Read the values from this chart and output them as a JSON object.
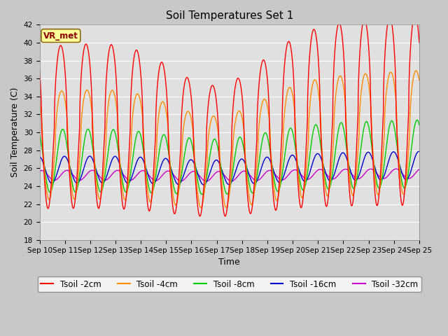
{
  "title": "Soil Temperatures Set 1",
  "xlabel": "Time",
  "ylabel": "Soil Temperature (C)",
  "ylim": [
    18,
    42
  ],
  "yticks": [
    18,
    20,
    22,
    24,
    26,
    28,
    30,
    32,
    34,
    36,
    38,
    40,
    42
  ],
  "xtick_labels": [
    "Sep 10",
    "Sep 11",
    "Sep 12",
    "Sep 13",
    "Sep 14",
    "Sep 15",
    "Sep 16",
    "Sep 17",
    "Sep 18",
    "Sep 19",
    "Sep 20",
    "Sep 21",
    "Sep 22",
    "Sep 23",
    "Sep 24",
    "Sep 25"
  ],
  "series": [
    {
      "label": "Tsoil -2cm",
      "color": "#ff0000"
    },
    {
      "label": "Tsoil -4cm",
      "color": "#ff8c00"
    },
    {
      "label": "Tsoil -8cm",
      "color": "#00cc00"
    },
    {
      "label": "Tsoil -16cm",
      "color": "#0000cc"
    },
    {
      "label": "Tsoil -32cm",
      "color": "#cc00cc"
    }
  ],
  "vr_met_label": "VR_met",
  "fig_bg_color": "#c8c8c8",
  "plot_bg_color": "#e0e0e0",
  "title_fontsize": 11,
  "axis_label_fontsize": 9,
  "tick_fontsize": 7.5,
  "legend_fontsize": 8.5
}
